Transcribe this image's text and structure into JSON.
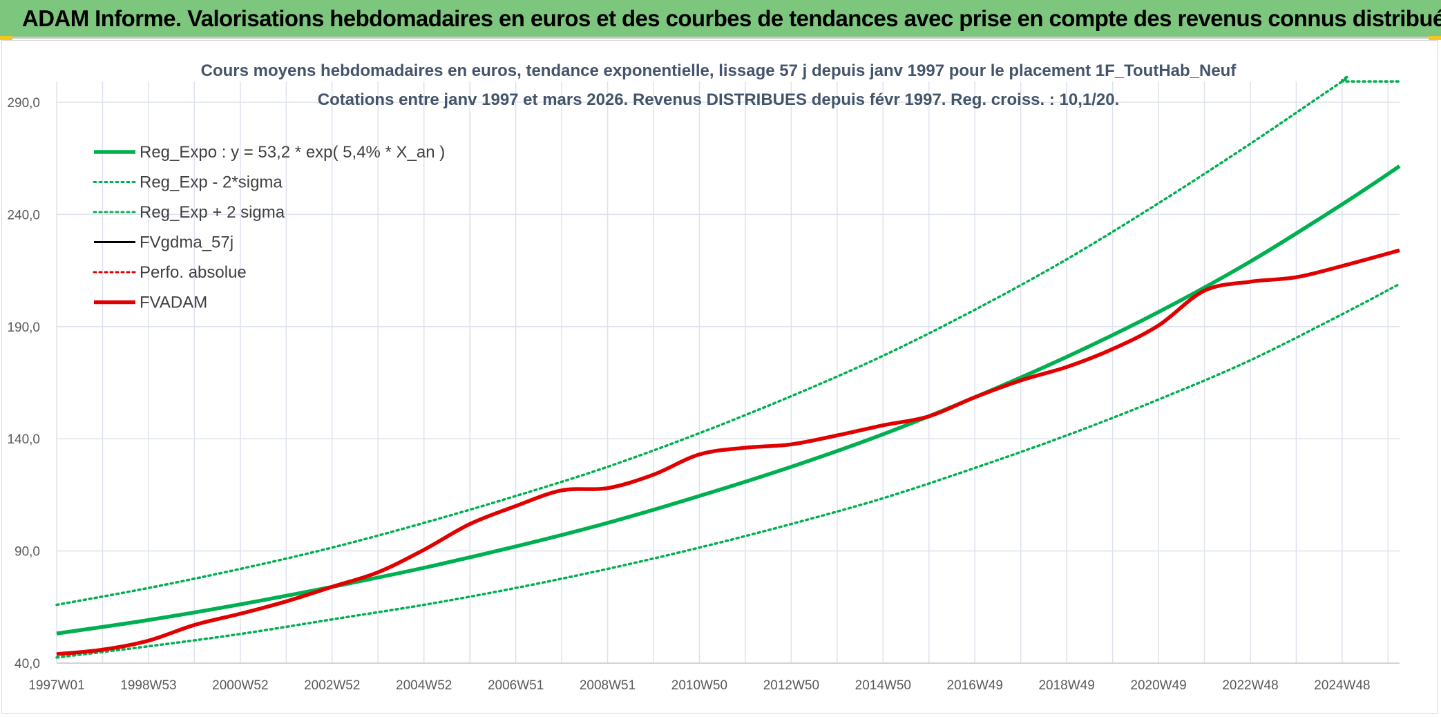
{
  "banner": {
    "title": "ADAM Informe. Valorisations hebdomadaires en euros et des courbes de tendances avec prise en compte des revenus connus distribués"
  },
  "colors": {
    "banner_bg": "#7dc67d",
    "green": "#00b050",
    "red": "#e00000",
    "black": "#000000",
    "grid": "#dde2ec",
    "axis_text": "#595959",
    "title_text": "#44546a",
    "accent_yellow": "#f5c518"
  },
  "chart_data": {
    "type": "line",
    "title": [
      "Cours moyens hebdomadaires en euros, tendance exponentielle, lissage 57 j depuis janv 1997 pour le placement 1F_ToutHab_Neuf",
      "Cotations entre janv 1997 et mars 2026. Revenus DISTRIBUES depuis févr 1997. Reg. croiss. : 10,1/20."
    ],
    "xlabel": "",
    "ylabel": "",
    "x_domain": [
      1997.0,
      2026.25
    ],
    "ylim": [
      40,
      290
    ],
    "yticks": [
      40,
      90,
      140,
      190,
      240,
      290
    ],
    "ytick_labels": [
      "40,0",
      "90,0",
      "140,0",
      "190,0",
      "240,0",
      "290,0"
    ],
    "xticks": [
      {
        "label": "1997W01",
        "x": 1997.0
      },
      {
        "label": "1998W53",
        "x": 1999.0
      },
      {
        "label": "2000W52",
        "x": 2001.0
      },
      {
        "label": "2002W52",
        "x": 2003.0
      },
      {
        "label": "2004W52",
        "x": 2005.0
      },
      {
        "label": "2006W51",
        "x": 2007.0
      },
      {
        "label": "2008W51",
        "x": 2009.0
      },
      {
        "label": "2010W50",
        "x": 2011.0
      },
      {
        "label": "2012W50",
        "x": 2013.0
      },
      {
        "label": "2014W50",
        "x": 2015.0
      },
      {
        "label": "2016W49",
        "x": 2017.0
      },
      {
        "label": "2018W49",
        "x": 2019.0
      },
      {
        "label": "2020W49",
        "x": 2021.0
      },
      {
        "label": "2022W48",
        "x": 2023.0
      },
      {
        "label": "2024W48",
        "x": 2025.0
      }
    ],
    "grid": true,
    "legend_position": "top-left",
    "series": [
      {
        "name": "Reg_Expo : y = 53,2 * exp( 5,4% *  X_an )",
        "color": "#00b050",
        "style": "solid-thick",
        "x": [
          1997.0,
          1999.0,
          2001.0,
          2003.0,
          2005.0,
          2007.0,
          2009.0,
          2011.0,
          2013.0,
          2015.0,
          2017.0,
          2019.0,
          2021.0,
          2023.0,
          2025.0,
          2026.25
        ],
        "y": [
          53.2,
          59.2,
          66.2,
          74.0,
          82.5,
          92.0,
          102.5,
          114.5,
          127.5,
          142.0,
          158.5,
          176.5,
          196.5,
          219.0,
          244.5,
          261.5
        ]
      },
      {
        "name": "Reg_Exp - 2*sigma",
        "color": "#00b050",
        "style": "dotted",
        "x": [
          1997.0,
          1999.0,
          2001.0,
          2003.0,
          2005.0,
          2007.0,
          2009.0,
          2011.0,
          2013.0,
          2015.0,
          2017.0,
          2019.0,
          2021.0,
          2023.0,
          2025.0,
          2026.25
        ],
        "y": [
          42.5,
          47.5,
          53.0,
          59.5,
          66.0,
          73.5,
          82.0,
          91.5,
          102.0,
          113.5,
          127.0,
          141.5,
          157.5,
          175.0,
          195.5,
          209.0
        ]
      },
      {
        "name": "Reg_Exp + 2 sigma",
        "color": "#00b050",
        "style": "dotted",
        "x": [
          1997.0,
          1999.0,
          2001.0,
          2003.0,
          2005.0,
          2007.0,
          2009.0,
          2011.0,
          2013.0,
          2015.0,
          2017.0,
          2019.0,
          2021.0,
          2023.0,
          2025.0,
          2025.05,
          2026.25
        ],
        "y": [
          66.0,
          73.5,
          82.0,
          91.5,
          102.5,
          114.5,
          127.5,
          142.5,
          159.0,
          177.0,
          197.5,
          220.0,
          245.0,
          271.5,
          300.0,
          300.0,
          300.0
        ]
      },
      {
        "name": "FVgdma_57j",
        "color": "#000000",
        "style": "solid",
        "x": [],
        "y": []
      },
      {
        "name": "Perfo. absolue",
        "color": "#e00000",
        "style": "dotted",
        "x": [],
        "y": []
      },
      {
        "name": "FVADAM",
        "color": "#e00000",
        "style": "solid-thick",
        "x": [
          1997.0,
          1998.0,
          1999.0,
          2000.0,
          2001.0,
          2002.0,
          2003.0,
          2004.0,
          2005.0,
          2006.0,
          2007.0,
          2008.0,
          2009.0,
          2010.0,
          2011.0,
          2012.0,
          2013.0,
          2014.0,
          2015.0,
          2016.0,
          2017.0,
          2018.0,
          2019.0,
          2020.0,
          2021.0,
          2022.0,
          2023.0,
          2024.0,
          2025.0,
          2026.25
        ],
        "y": [
          44.0,
          46.0,
          50.0,
          57.0,
          62.0,
          67.5,
          74.0,
          80.5,
          90.5,
          102.0,
          110.0,
          117.0,
          118.0,
          124.0,
          133.0,
          136.0,
          137.5,
          141.5,
          146.0,
          150.0,
          158.5,
          166.0,
          172.0,
          180.0,
          190.5,
          206.0,
          210.0,
          212.0,
          217.0,
          224.0
        ]
      }
    ]
  }
}
